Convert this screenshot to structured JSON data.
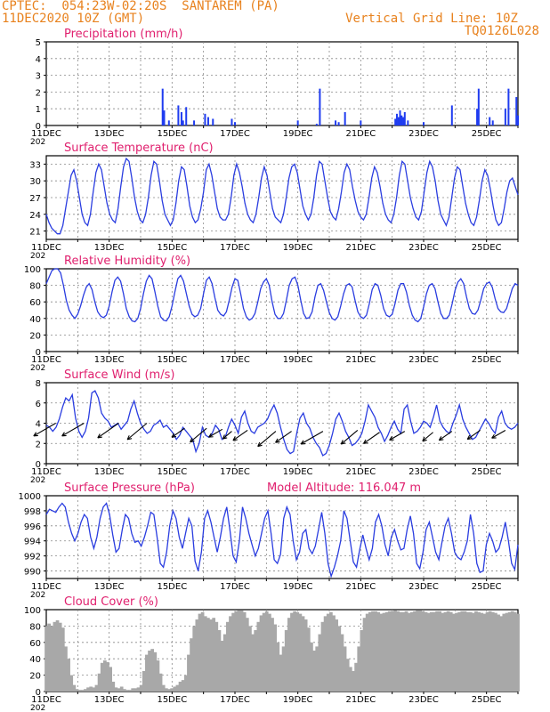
{
  "header": {
    "line1": "CPTEC:  054:23W-02:20S  SANTAREM (PA)",
    "line2": "11DEC2020 10Z (GMT)",
    "grid_note": "Vertical Grid Line: 10Z",
    "code": "TQ0126L028"
  },
  "model_altitude": "Model Altitude: 116.047 m",
  "x_ticks": [
    "11DEC",
    "13DEC",
    "15DEC",
    "17DEC",
    "19DEC",
    "21DEC",
    "23DEC",
    "25DEC"
  ],
  "year_label": "202",
  "colors": {
    "header": "#e8821e",
    "title": "#e0206e",
    "line": "#2a3de0",
    "bar": "#1f3cf0",
    "cloud": "#a8a8a8",
    "arrow": "#000000"
  },
  "chart_data": [
    {
      "type": "bar",
      "title": "Precipitation (mm/h)",
      "ylim": [
        0,
        5
      ],
      "yticks": [
        0,
        1,
        2,
        3,
        4,
        5
      ],
      "x_unit": "days since 11DEC2020 10Z",
      "bars": [
        [
          3.7,
          2.2
        ],
        [
          3.75,
          0.9
        ],
        [
          3.9,
          0.3
        ],
        [
          4.2,
          1.2
        ],
        [
          4.3,
          0.8
        ],
        [
          4.35,
          0.3
        ],
        [
          4.45,
          1.1
        ],
        [
          4.7,
          0.3
        ],
        [
          5.05,
          0.7
        ],
        [
          5.15,
          0.5
        ],
        [
          5.3,
          0.4
        ],
        [
          5.9,
          0.4
        ],
        [
          6.0,
          0.2
        ],
        [
          8.0,
          0.3
        ],
        [
          8.6,
          0.1
        ],
        [
          8.7,
          2.2
        ],
        [
          9.2,
          0.3
        ],
        [
          9.3,
          0.2
        ],
        [
          9.5,
          0.8
        ],
        [
          10.0,
          0.3
        ],
        [
          11.1,
          0.4
        ],
        [
          11.15,
          0.7
        ],
        [
          11.2,
          0.5
        ],
        [
          11.25,
          0.9
        ],
        [
          11.3,
          0.6
        ],
        [
          11.35,
          0.5
        ],
        [
          11.4,
          0.8
        ],
        [
          11.5,
          0.3
        ],
        [
          12.0,
          0.2
        ],
        [
          12.9,
          1.2
        ],
        [
          13.7,
          1.0
        ],
        [
          13.75,
          2.2
        ],
        [
          14.1,
          0.5
        ],
        [
          14.2,
          0.3
        ],
        [
          14.6,
          1.0
        ],
        [
          14.7,
          2.2
        ],
        [
          14.95,
          1.7
        ],
        [
          15.0,
          0.6
        ]
      ]
    },
    {
      "type": "line",
      "title": "Surface Temperature (nC)",
      "ylim": [
        19.5,
        34.5
      ],
      "yticks": [
        21,
        24,
        27,
        30,
        33
      ],
      "series": [
        {
          "values": [
            24,
            22.5,
            21.5,
            21,
            20.5,
            20.5,
            22,
            25,
            28,
            31,
            32,
            30,
            27,
            24,
            22.5,
            22,
            24,
            28,
            31.5,
            33,
            32,
            29,
            26,
            24,
            23,
            22.5,
            25,
            29,
            32.5,
            34,
            33.5,
            30.5,
            27,
            24.5,
            23,
            22.5,
            24,
            27,
            31,
            33.5,
            33,
            30,
            26.5,
            24,
            23,
            22,
            23,
            26,
            30,
            32.5,
            32,
            29,
            25.5,
            23.5,
            22.5,
            23,
            25,
            28,
            32,
            33,
            31,
            28,
            25,
            23.5,
            23,
            23,
            24,
            27,
            31,
            33,
            31.5,
            29,
            26,
            24,
            23,
            22.5,
            24,
            27,
            30.5,
            32.5,
            31,
            28,
            25,
            23.5,
            23,
            22.5,
            24,
            27,
            30.5,
            32.5,
            33,
            31.5,
            28.5,
            25.5,
            24,
            23,
            24,
            27,
            31,
            33.5,
            33,
            30,
            27,
            24.5,
            23.5,
            23,
            25,
            28,
            31.5,
            33,
            32,
            29,
            26.5,
            24.5,
            23.5,
            23,
            24,
            27,
            30.5,
            32.5,
            31.5,
            29,
            26,
            24,
            23,
            22.5,
            24,
            27,
            31,
            33.5,
            33,
            30,
            27,
            25,
            23.5,
            23,
            24.5,
            28,
            31.5,
            33.5,
            32.5,
            30,
            26.5,
            24,
            23,
            22,
            23.5,
            27,
            30.5,
            32.5,
            32,
            29,
            26,
            24,
            22.5,
            22,
            23.5,
            26.5,
            30,
            32,
            31,
            28.5,
            25.5,
            23,
            22,
            22.5,
            25,
            28,
            30,
            30.5,
            29,
            27.5
          ]
        }
      ]
    },
    {
      "type": "line",
      "title": "Relative Humidity (%)",
      "ylim": [
        0,
        100
      ],
      "yticks": [
        0,
        20,
        40,
        60,
        80,
        100
      ],
      "series": [
        {
          "values": [
            82,
            90,
            98,
            100,
            100,
            95,
            80,
            62,
            50,
            44,
            40,
            45,
            55,
            68,
            78,
            82,
            75,
            60,
            48,
            43,
            41,
            44,
            55,
            72,
            86,
            90,
            85,
            70,
            52,
            42,
            37,
            36,
            40,
            52,
            70,
            85,
            92,
            88,
            72,
            55,
            42,
            38,
            37,
            42,
            55,
            72,
            88,
            92,
            85,
            70,
            55,
            45,
            42,
            44,
            52,
            70,
            86,
            90,
            82,
            65,
            50,
            45,
            43,
            48,
            62,
            78,
            88,
            86,
            70,
            52,
            42,
            38,
            40,
            46,
            60,
            76,
            84,
            88,
            80,
            60,
            45,
            40,
            40,
            46,
            62,
            80,
            88,
            90,
            80,
            62,
            46,
            40,
            41,
            48,
            66,
            80,
            82,
            74,
            60,
            47,
            40,
            38,
            42,
            55,
            70,
            80,
            82,
            78,
            62,
            48,
            42,
            40,
            44,
            58,
            75,
            82,
            80,
            68,
            52,
            44,
            42,
            45,
            58,
            74,
            82,
            82,
            72,
            56,
            44,
            38,
            36,
            40,
            54,
            70,
            80,
            82,
            76,
            60,
            46,
            40,
            40,
            44,
            58,
            74,
            84,
            88,
            82,
            66,
            52,
            46,
            45,
            50,
            62,
            76,
            82,
            84,
            78,
            64,
            52,
            48,
            47,
            52,
            64,
            76,
            82,
            80
          ]
        }
      ]
    },
    {
      "type": "line",
      "title": "Surface Wind (m/s)",
      "ylim": [
        0,
        8
      ],
      "yticks": [
        0,
        2,
        4,
        6,
        8
      ],
      "series": [
        {
          "values": [
            3.8,
            3.6,
            3.2,
            3.6,
            4.4,
            5.6,
            6.5,
            6.2,
            6.8,
            4.5,
            3.2,
            2.6,
            3.2,
            4.5,
            7.0,
            7.2,
            6.5,
            5.0,
            4.5,
            4.2,
            3.6,
            3.8,
            4.0,
            3.4,
            3.8,
            4.2,
            5.4,
            6.2,
            5.0,
            4.0,
            3.4,
            3.0,
            3.2,
            3.8,
            4.0,
            4.3,
            3.6,
            3.8,
            3.4,
            3.0,
            2.4,
            2.8,
            3.6,
            3.2,
            2.8,
            2.4,
            1.2,
            2.0,
            3.6,
            2.8,
            2.6,
            3.0,
            3.8,
            3.4,
            2.4,
            2.6,
            3.6,
            4.4,
            3.8,
            3.0,
            4.6,
            5.2,
            4.0,
            3.2,
            3.0,
            3.6,
            3.8,
            4.0,
            4.4,
            5.2,
            5.8,
            5.0,
            3.6,
            2.4,
            1.4,
            1.0,
            1.2,
            3.0,
            4.5,
            5.0,
            4.0,
            3.5,
            2.6,
            2.0,
            1.6,
            0.8,
            1.0,
            1.8,
            3.0,
            4.4,
            5.0,
            4.2,
            3.2,
            2.6,
            1.8,
            2.0,
            2.4,
            3.0,
            4.2,
            5.8,
            5.2,
            4.6,
            3.6,
            3.0,
            2.2,
            2.8,
            3.6,
            4.2,
            3.4,
            3.0,
            5.4,
            5.8,
            4.2,
            3.0,
            3.2,
            3.6,
            4.2,
            4.0,
            3.6,
            4.6,
            5.8,
            4.2,
            3.6,
            3.2,
            3.0,
            4.0,
            4.8,
            5.8,
            4.4,
            3.6,
            3.0,
            2.4,
            2.6,
            3.2,
            3.8,
            4.4,
            4.0,
            3.4,
            3.0,
            4.6,
            5.2,
            4.0,
            3.6,
            3.4,
            3.6,
            4.0
          ]
        }
      ],
      "arrows": [
        [
          0.3,
          4,
          150,
          13
        ],
        [
          1.2,
          4,
          150,
          13
        ],
        [
          2.3,
          4,
          145,
          13
        ],
        [
          3.2,
          4,
          140,
          13
        ],
        [
          4.4,
          3.5,
          145,
          8
        ],
        [
          5.1,
          3.5,
          140,
          11
        ],
        [
          5.6,
          3.4,
          150,
          8
        ],
        [
          5.9,
          3.2,
          140,
          6
        ],
        [
          6.4,
          3.3,
          145,
          9
        ],
        [
          7.3,
          3.2,
          140,
          12
        ],
        [
          7.8,
          3.2,
          145,
          10
        ],
        [
          8.8,
          3.2,
          150,
          13
        ],
        [
          9.9,
          3.3,
          140,
          11
        ],
        [
          10.6,
          3.1,
          145,
          10
        ],
        [
          11.4,
          3.2,
          150,
          9
        ],
        [
          12.3,
          3.1,
          140,
          7
        ],
        [
          12.9,
          3.2,
          145,
          8
        ],
        [
          13.8,
          3.3,
          145,
          8
        ],
        [
          14.6,
          3.3,
          150,
          8
        ]
      ]
    },
    {
      "type": "line",
      "title": "Surface Pressure (hPa)",
      "ylim": [
        989,
        1000
      ],
      "yticks": [
        990,
        992,
        994,
        996,
        998,
        1000
      ],
      "series": [
        {
          "values": [
            997.5,
            998.2,
            998,
            997.8,
            998.5,
            999,
            998.5,
            996.5,
            995,
            994,
            995,
            996.5,
            997.5,
            997,
            994.5,
            993,
            994.5,
            997,
            998.5,
            999,
            997.5,
            994.8,
            992.5,
            993,
            995.5,
            997.5,
            997,
            995,
            993.8,
            994,
            993.3,
            994.5,
            996,
            997.8,
            997.5,
            994.5,
            991,
            990.5,
            992.5,
            996,
            998,
            997,
            994.5,
            993,
            995,
            997,
            996,
            991.3,
            990,
            992.5,
            997,
            998,
            996.5,
            994.5,
            992.5,
            994.5,
            997,
            998.5,
            995.5,
            992,
            991.2,
            994,
            998.5,
            997,
            995,
            993.5,
            992,
            993,
            995,
            997,
            998,
            995,
            991.5,
            991,
            992.2,
            997,
            998.5,
            997.5,
            994,
            991.5,
            992.5,
            995,
            995.5,
            993,
            992.3,
            993.3,
            995.5,
            997.8,
            995,
            991,
            989.3,
            990.5,
            992,
            994,
            998,
            997,
            994,
            991.2,
            990.5,
            992.8,
            994.8,
            993,
            991.5,
            993,
            996.5,
            997.5,
            996,
            993.5,
            992,
            994.5,
            995.5,
            994,
            992.8,
            993,
            995.5,
            997.3,
            995,
            991,
            990.3,
            992.5,
            995.5,
            996.5,
            994.5,
            992.5,
            991.5,
            993.8,
            996,
            997,
            995,
            992.5,
            991.8,
            991.5,
            992.5,
            994,
            997.5,
            995,
            991,
            989.8,
            990,
            993.5,
            995,
            994,
            992.5,
            993,
            994.5,
            996.5,
            994,
            991,
            990.2,
            993.5
          ]
        }
      ]
    },
    {
      "type": "bar",
      "title": "Cloud Cover (%)",
      "ylim": [
        0,
        100
      ],
      "yticks": [
        0,
        20,
        40,
        60,
        80,
        100
      ],
      "series": [
        {
          "values": [
            80,
            83,
            80,
            85,
            87,
            84,
            78,
            55,
            40,
            20,
            8,
            3,
            2,
            2,
            3,
            5,
            6,
            5,
            8,
            22,
            35,
            38,
            36,
            30,
            12,
            5,
            4,
            6,
            3,
            2,
            2,
            4,
            4,
            5,
            8,
            25,
            45,
            50,
            52,
            48,
            38,
            22,
            8,
            4,
            3,
            4,
            6,
            8,
            12,
            14,
            20,
            45,
            65,
            80,
            88,
            95,
            97,
            92,
            90,
            88,
            90,
            85,
            75,
            62,
            70,
            85,
            92,
            96,
            98,
            99,
            99,
            97,
            90,
            80,
            70,
            75,
            85,
            93,
            96,
            98,
            95,
            90,
            82,
            60,
            45,
            55,
            75,
            90,
            96,
            98,
            97,
            95,
            92,
            88,
            78,
            60,
            50,
            55,
            70,
            85,
            92,
            95,
            97,
            93,
            88,
            80,
            70,
            55,
            40,
            30,
            25,
            35,
            55,
            75,
            90,
            95,
            97,
            98,
            98,
            97,
            95,
            96,
            97,
            98,
            98,
            99,
            98,
            97,
            97,
            98,
            96,
            97,
            98,
            99,
            99,
            98,
            97,
            96,
            97,
            97,
            98,
            98,
            96,
            97,
            98,
            97,
            95,
            96,
            97,
            98,
            98,
            97,
            97,
            96,
            98,
            97,
            96,
            95,
            97,
            98,
            97,
            96,
            94,
            92,
            95,
            96,
            97,
            98,
            97,
            95
          ]
        }
      ]
    }
  ]
}
